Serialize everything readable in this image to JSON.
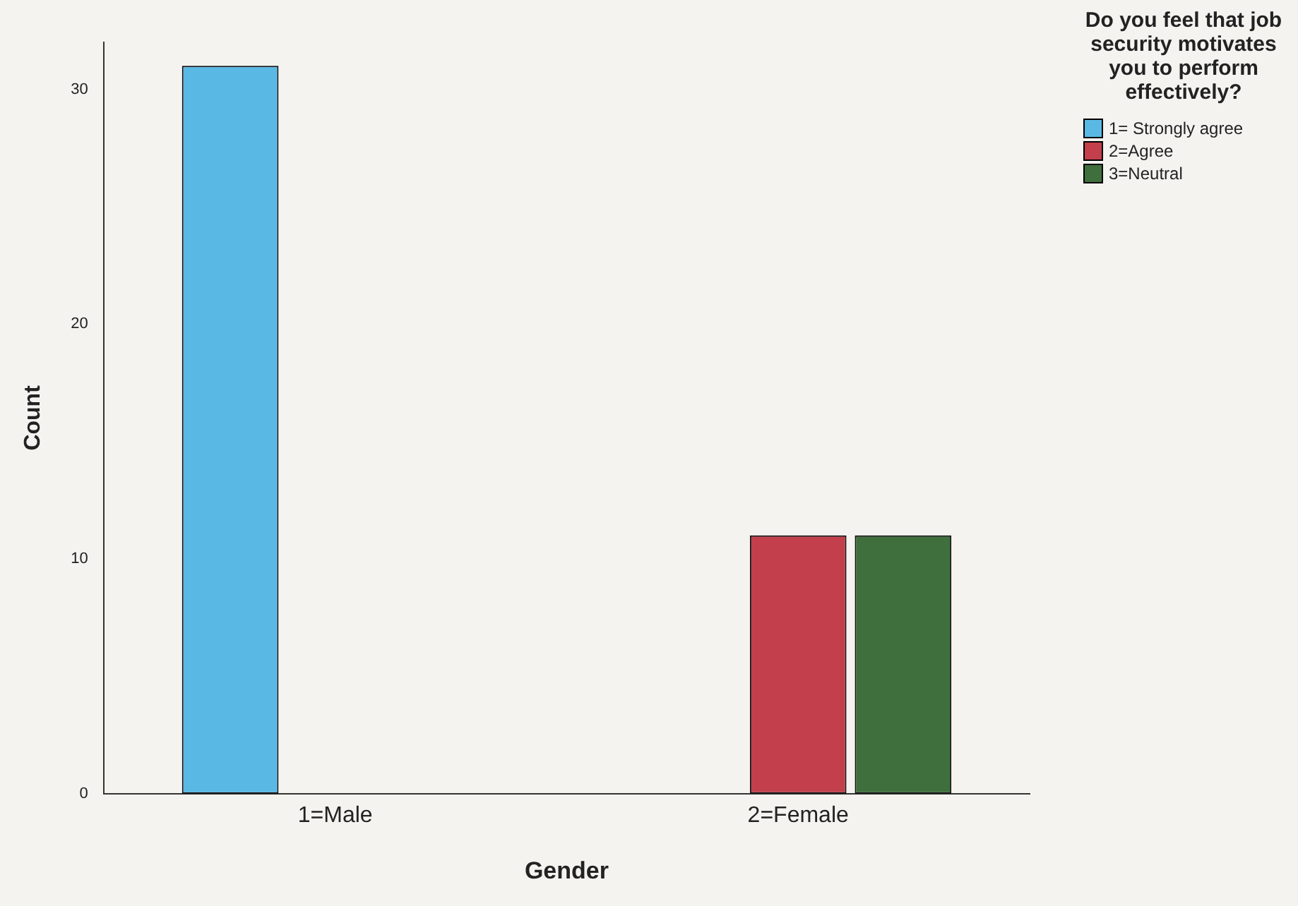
{
  "chart_data": {
    "type": "bar",
    "xlabel": "Gender",
    "ylabel": "Count",
    "legend_title": "Do you feel that job security motivates you to perform effectively?",
    "categories": [
      "1=Male",
      "2=Female"
    ],
    "series": [
      {
        "name": "1= Strongly agree",
        "color": "#5ab8e4",
        "values": [
          31,
          0
        ]
      },
      {
        "name": "2=Agree",
        "color": "#c23f4b",
        "values": [
          0,
          11
        ]
      },
      {
        "name": "3=Neutral",
        "color": "#3f6f3c",
        "values": [
          0,
          11
        ]
      }
    ],
    "ylim": [
      0,
      32
    ],
    "yticks": [
      0,
      10,
      20,
      30
    ],
    "grid": false,
    "legend": "top right"
  }
}
